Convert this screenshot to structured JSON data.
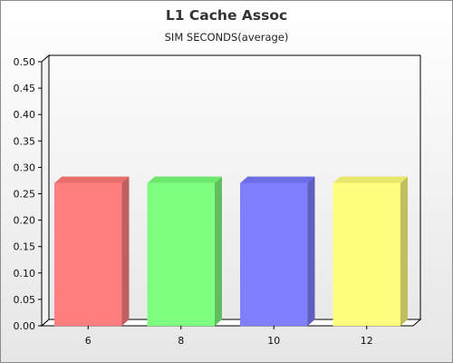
{
  "chart_data": {
    "type": "bar",
    "title": "L1 Cache Assoc",
    "subtitle": "SIM SECONDS(average)",
    "xlabel": "",
    "ylabel": "",
    "categories": [
      "6",
      "8",
      "10",
      "12"
    ],
    "values": [
      0.27,
      0.27,
      0.27,
      0.27
    ],
    "ylim": [
      0,
      0.5
    ],
    "yticks": [
      "0.00",
      "0.05",
      "0.10",
      "0.15",
      "0.20",
      "0.25",
      "0.30",
      "0.35",
      "0.40",
      "0.45",
      "0.50"
    ],
    "bar_colors": [
      "#ff7f7f",
      "#7fff7f",
      "#7f7fff",
      "#ffff7f"
    ],
    "bar_side_colors": [
      "#bf5f5f",
      "#5fbf5f",
      "#5f5fbf",
      "#bfbf5f"
    ],
    "bar_top_colors": [
      "#e86d6d",
      "#6de86d",
      "#6d6de8",
      "#e8e86d"
    ],
    "grid": false,
    "legend": "none",
    "style": "3d"
  }
}
